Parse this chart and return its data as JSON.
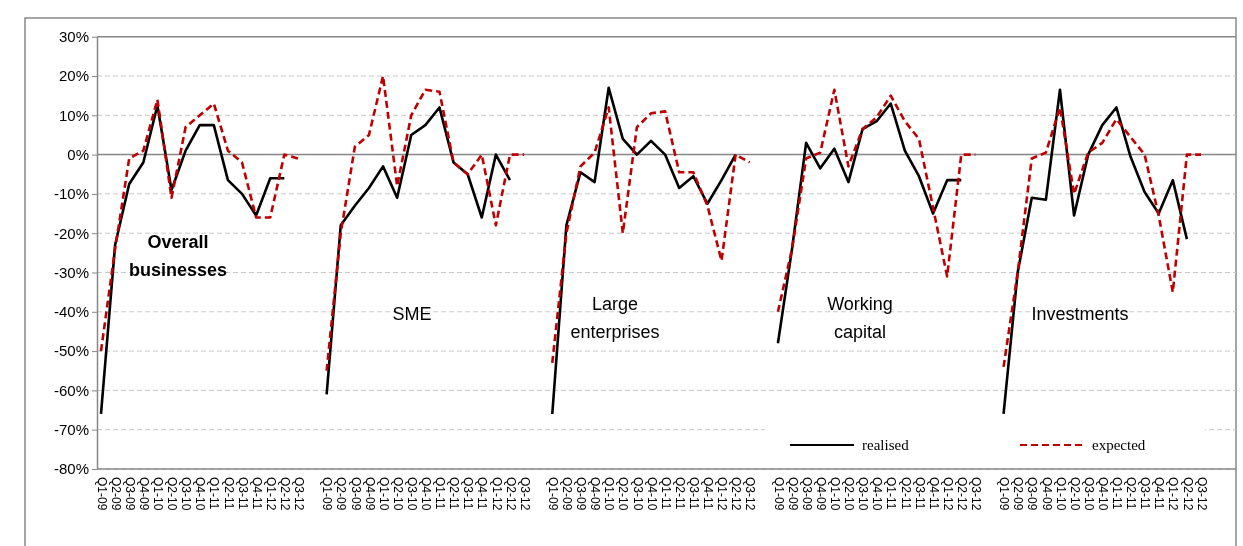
{
  "chart_data": {
    "type": "line",
    "categories": [
      "Q1-09",
      "Q2-09",
      "Q3-09",
      "Q4-09",
      "Q1-10",
      "Q2-10",
      "Q3-10",
      "Q4-10",
      "Q1-11",
      "Q2-11",
      "Q3-11",
      "Q4-11",
      "Q1-12",
      "Q2-12",
      "Q3-12",
      null,
      "Q1-09",
      "Q2-09",
      "Q3-09",
      "Q4-09",
      "Q1-10",
      "Q2-10",
      "Q3-10",
      "Q4-10",
      "Q1-11",
      "Q2-11",
      "Q3-11",
      "Q4-11",
      "Q1-12",
      "Q2-12",
      "Q3-12",
      null,
      "Q1-09",
      "Q2-09",
      "Q3-09",
      "Q4-09",
      "Q1-10",
      "Q2-10",
      "Q3-10",
      "Q4-10",
      "Q1-11",
      "Q2-11",
      "Q3-11",
      "Q4-11",
      "Q1-12",
      "Q2-12",
      "Q3-12",
      null,
      "Q1-09",
      "Q2-09",
      "Q3-09",
      "Q4-09",
      "Q1-10",
      "Q2-10",
      "Q3-10",
      "Q4-10",
      "Q1-11",
      "Q2-11",
      "Q3-11",
      "Q4-11",
      "Q1-12",
      "Q2-12",
      "Q3-12",
      null,
      "Q1-09",
      "Q2-09",
      "Q3-09",
      "Q4-09",
      "Q1-10",
      "Q2-10",
      "Q3-10",
      "Q4-10",
      "Q1-11",
      "Q2-11",
      "Q3-11",
      "Q4-11",
      "Q1-12",
      "Q2-12",
      "Q3-12"
    ],
    "series": [
      {
        "name": "realised",
        "color": "#000000",
        "line_style": "solid",
        "values": [
          -66,
          -23,
          -7.5,
          -2,
          12.5,
          -9,
          1,
          7.5,
          7.5,
          -6.5,
          -10,
          -15.5,
          -6,
          -6,
          null,
          null,
          -61,
          -18,
          -13,
          -8.5,
          -3,
          -11,
          5,
          7.5,
          12,
          -2,
          -5,
          -16,
          0,
          -6.5,
          null,
          null,
          -66,
          -18,
          -4.5,
          -7,
          17,
          4,
          0,
          3.5,
          0,
          -8.5,
          -5.5,
          -12.5,
          -6.5,
          0,
          null,
          null,
          -48,
          -24,
          3,
          -3.5,
          1.5,
          -7,
          6.5,
          8.5,
          13,
          1,
          -5.5,
          -15,
          -6.5,
          -6.5,
          null,
          null,
          -66,
          -30,
          -11,
          -11.5,
          16.5,
          -15.5,
          0,
          7.5,
          12,
          -0.5,
          -9.5,
          -15,
          -6.5,
          -21.5,
          null
        ]
      },
      {
        "name": "expected",
        "color": "#c00000",
        "line_style": "dashed",
        "values": [
          -50,
          -24,
          -1,
          1,
          14,
          -11,
          7,
          10,
          13,
          1,
          -2,
          -16,
          -16,
          0,
          -1,
          null,
          -55,
          -20,
          2,
          5,
          20,
          -8,
          10,
          16.5,
          16,
          -2,
          -5,
          0,
          -18,
          0,
          0,
          null,
          -53,
          -20,
          -3,
          0.5,
          12,
          -20,
          7,
          10.5,
          11,
          -4.5,
          -4.5,
          -13,
          -27,
          0,
          -2,
          null,
          -40,
          -24,
          -1,
          0.5,
          16.5,
          -3,
          6.5,
          9.5,
          15,
          8.5,
          4,
          -13.5,
          -31,
          0,
          0,
          null,
          -54,
          -30,
          -1,
          0.5,
          12,
          -10,
          0.5,
          3,
          9,
          4.5,
          0,
          -15.5,
          -35,
          0,
          0
        ]
      }
    ],
    "ylim": [
      -80,
      30
    ],
    "yticks": [
      {
        "value": -80,
        "label": "-80%"
      },
      {
        "value": -70,
        "label": "-70%"
      },
      {
        "value": -60,
        "label": "-60%"
      },
      {
        "value": -50,
        "label": "-50%"
      },
      {
        "value": -40,
        "label": "-40%"
      },
      {
        "value": -30,
        "label": "-30%"
      },
      {
        "value": -20,
        "label": "-20%"
      },
      {
        "value": -10,
        "label": "-10%"
      },
      {
        "value": 0,
        "label": "0%"
      },
      {
        "value": 10,
        "label": "10%"
      },
      {
        "value": 20,
        "label": "20%"
      },
      {
        "value": 30,
        "label": "30%"
      }
    ],
    "grid": "y",
    "legend": "bottom right",
    "marker": "none",
    "annotations": [
      "Overall businesses",
      "SME",
      "Large enterprises",
      "Working capital",
      "Investments"
    ]
  }
}
